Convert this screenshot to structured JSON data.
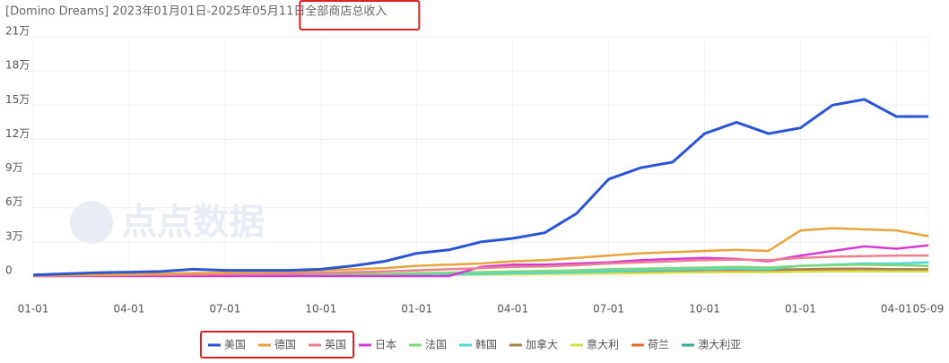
{
  "chart_data": {
    "type": "line",
    "title": "[Domino Dreams] 2023年01月01日-2025年05月11日",
    "subtitle": "全部商店总收入",
    "watermark": "点点数据",
    "categories": [
      "01-01",
      null,
      null,
      "04-01",
      null,
      null,
      "07-01",
      null,
      null,
      "10-01",
      null,
      null,
      "01-01",
      null,
      null,
      "04-01",
      null,
      null,
      "07-01",
      null,
      null,
      "10-01",
      null,
      null,
      "01-01",
      null,
      null,
      "04-01",
      "05-09"
    ],
    "ylim": [
      0,
      210000
    ],
    "yticks": [
      0,
      {
        "value": 30000,
        "label": "3万"
      },
      {
        "value": 60000,
        "label": "6万"
      },
      {
        "value": 90000,
        "label": "9万"
      },
      {
        "value": 120000,
        "label": "12万"
      },
      {
        "value": 150000,
        "label": "15万"
      },
      {
        "value": 180000,
        "label": "18万"
      },
      {
        "value": 210000,
        "label": "21万"
      }
    ],
    "grid": true,
    "legend": "bottom",
    "series": [
      {
        "name": "美国",
        "color": "#2a55d5",
        "values": [
          1000,
          2000,
          3000,
          3500,
          4000,
          6000,
          5000,
          5000,
          5000,
          6000,
          9000,
          13000,
          20000,
          23000,
          30000,
          33000,
          38000,
          55000,
          85000,
          95000,
          100000,
          125000,
          135000,
          125000,
          130000,
          150000,
          155000,
          140000,
          140000
        ]
      },
      {
        "name": "德国",
        "color": "#e8a33a",
        "values": [
          500,
          800,
          1000,
          1500,
          2000,
          2500,
          3000,
          3500,
          4000,
          5000,
          6000,
          7000,
          9000,
          10000,
          11000,
          13000,
          14000,
          16000,
          18000,
          20000,
          21000,
          22000,
          23000,
          22000,
          40000,
          42000,
          41000,
          40000,
          35000
        ]
      },
      {
        "name": "英国",
        "color": "#ee7f8e",
        "values": [
          300,
          500,
          700,
          1000,
          1200,
          1500,
          1800,
          2000,
          2200,
          2800,
          3500,
          4000,
          5000,
          6000,
          7000,
          8000,
          8500,
          9500,
          11000,
          12000,
          13000,
          14000,
          14500,
          14000,
          16000,
          17000,
          17500,
          18000,
          18000
        ]
      },
      {
        "name": "日本",
        "color": "#d63ad6",
        "values": [
          0,
          0,
          0,
          0,
          0,
          0,
          0,
          0,
          0,
          0,
          0,
          0,
          0,
          0,
          8000,
          10000,
          10000,
          11000,
          12000,
          14000,
          15000,
          16000,
          15000,
          13000,
          18000,
          22000,
          26000,
          24000,
          27000
        ]
      },
      {
        "name": "法国",
        "color": "#7ed87a",
        "values": [
          200,
          300,
          400,
          500,
          600,
          700,
          800,
          900,
          1000,
          1200,
          1500,
          1800,
          2500,
          3000,
          3500,
          4000,
          4500,
          5000,
          6000,
          6500,
          7000,
          7500,
          8000,
          7500,
          9000,
          9500,
          10000,
          9500,
          9000
        ]
      },
      {
        "name": "韩国",
        "color": "#4fd6d6",
        "values": [
          100,
          100,
          200,
          200,
          300,
          300,
          400,
          400,
          500,
          600,
          700,
          800,
          1000,
          1500,
          2000,
          2500,
          3000,
          3500,
          4000,
          5000,
          5500,
          6000,
          6500,
          6000,
          9000,
          10000,
          11000,
          11000,
          12000
        ]
      },
      {
        "name": "加拿大",
        "color": "#a8824f",
        "values": [
          300,
          400,
          500,
          600,
          700,
          800,
          900,
          1000,
          1100,
          1300,
          1500,
          1800,
          2200,
          2500,
          2800,
          3000,
          3300,
          3600,
          4000,
          4500,
          5000,
          5500,
          6000,
          5500,
          6000,
          6500,
          6500,
          6000,
          6000
        ]
      },
      {
        "name": "意大利",
        "color": "#d6e04a",
        "values": [
          100,
          150,
          200,
          250,
          300,
          350,
          400,
          450,
          500,
          600,
          700,
          800,
          1000,
          1200,
          1400,
          1600,
          1800,
          2000,
          2300,
          2600,
          3000,
          3300,
          3500,
          3300,
          3800,
          4000,
          4200,
          4000,
          4000
        ]
      },
      {
        "name": "荷兰",
        "color": "#e86a2a",
        "values": [
          100,
          150,
          200,
          300,
          400,
          500,
          600,
          700,
          800,
          900,
          1000,
          1200,
          1500,
          1800,
          2000,
          2300,
          2600,
          3000,
          3300,
          3600,
          4000,
          4300,
          4500,
          4300,
          4800,
          5000,
          5200,
          5000,
          5000
        ]
      },
      {
        "name": "澳大利亚",
        "color": "#3aaa8e",
        "values": [
          200,
          300,
          400,
          500,
          600,
          700,
          800,
          900,
          1000,
          1200,
          1400,
          1600,
          2000,
          2300,
          2600,
          3000,
          3300,
          3600,
          4000,
          4300,
          4600,
          5000,
          5200,
          5000,
          5500,
          5800,
          6000,
          5800,
          5500
        ]
      }
    ]
  }
}
